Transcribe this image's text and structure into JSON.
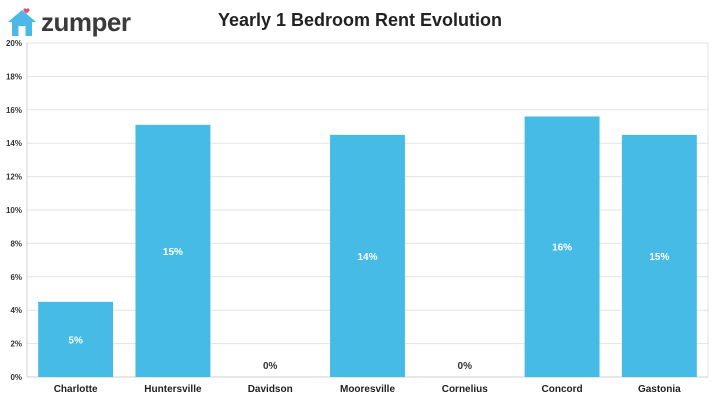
{
  "brand": {
    "name": "zumper",
    "logo_color": "#4bb8e8",
    "heart_color": "#e94a7a"
  },
  "chart_data": {
    "type": "bar",
    "title": "Yearly 1 Bedroom Rent Evolution",
    "xlabel": "",
    "ylabel": "",
    "categories": [
      "Charlotte",
      "Huntersville",
      "Davidson",
      "Mooresville",
      "Cornelius",
      "Concord",
      "Gastonia"
    ],
    "values": [
      4.5,
      15.1,
      0,
      14.5,
      0,
      15.6,
      14.5
    ],
    "data_labels": [
      "5%",
      "15%",
      "0%",
      "14%",
      "0%",
      "16%",
      "15%"
    ],
    "ylim": [
      0,
      20
    ],
    "y_ticks": [
      0,
      2,
      4,
      6,
      8,
      10,
      12,
      14,
      16,
      18,
      20
    ],
    "y_tick_labels": [
      "0%",
      "2%",
      "4%",
      "6%",
      "8%",
      "10%",
      "12%",
      "14%",
      "16%",
      "18%",
      "20%"
    ],
    "grid": true,
    "bar_color": "#45bbe6"
  }
}
